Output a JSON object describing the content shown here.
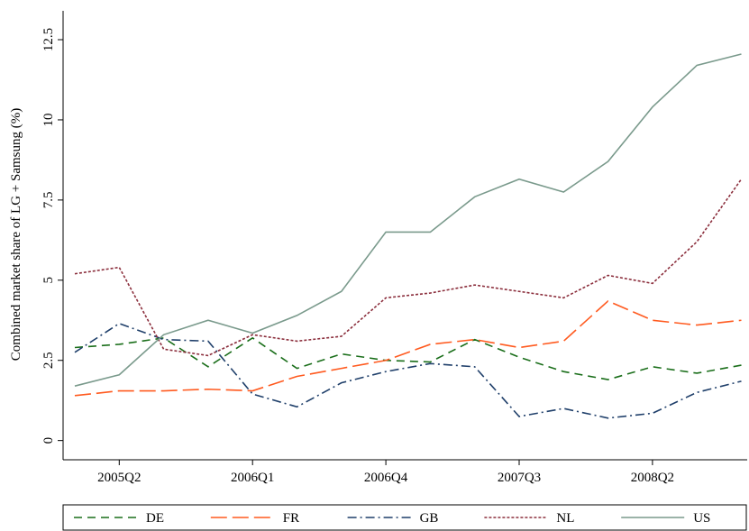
{
  "chart_data": {
    "type": "line",
    "y_label": "Combined market share of LG + Samsung (%)",
    "categories": [
      null,
      "2005Q2",
      null,
      null,
      "2006Q1",
      null,
      null,
      "2006Q4",
      null,
      null,
      "2007Q3",
      null,
      null,
      "2008Q2",
      null,
      null
    ],
    "ylim": [
      -0.6,
      13.4
    ],
    "yticks": [
      0,
      2.5,
      5,
      7.5,
      10,
      12.5
    ],
    "grid": false,
    "legend": "bottom",
    "series": [
      {
        "name": "DE",
        "color": "#1a6e1a",
        "dash": "9,6",
        "values": [
          2.9,
          3.0,
          3.2,
          2.3,
          3.2,
          2.25,
          2.7,
          2.5,
          2.45,
          3.15,
          2.6,
          2.15,
          1.9,
          2.3,
          2.1,
          2.35
        ]
      },
      {
        "name": "FR",
        "color": "#ff5a1f",
        "dash": "18,6",
        "values": [
          1.4,
          1.55,
          1.55,
          1.6,
          1.55,
          2.0,
          2.25,
          2.5,
          3.0,
          3.15,
          2.9,
          3.1,
          4.35,
          3.75,
          3.6,
          3.75
        ]
      },
      {
        "name": "GB",
        "color": "#1f3f6a",
        "dash": "10,4,2,4",
        "values": [
          2.75,
          3.65,
          3.15,
          3.1,
          1.45,
          1.05,
          1.8,
          2.15,
          2.4,
          2.3,
          0.75,
          1.0,
          0.7,
          0.85,
          1.5,
          1.85
        ]
      },
      {
        "name": "NL",
        "color": "#8b2e3c",
        "dash": "3,2",
        "values": [
          5.2,
          5.4,
          2.85,
          2.65,
          3.3,
          3.1,
          3.25,
          4.45,
          4.6,
          4.85,
          4.65,
          4.45,
          5.15,
          4.9,
          6.2,
          8.15
        ]
      },
      {
        "name": "US",
        "color": "#7a9a8c",
        "dash": "",
        "values": [
          1.7,
          2.05,
          3.3,
          3.75,
          3.35,
          3.9,
          4.65,
          6.5,
          6.5,
          7.6,
          8.15,
          7.75,
          8.7,
          10.4,
          11.7,
          12.05
        ]
      }
    ]
  }
}
